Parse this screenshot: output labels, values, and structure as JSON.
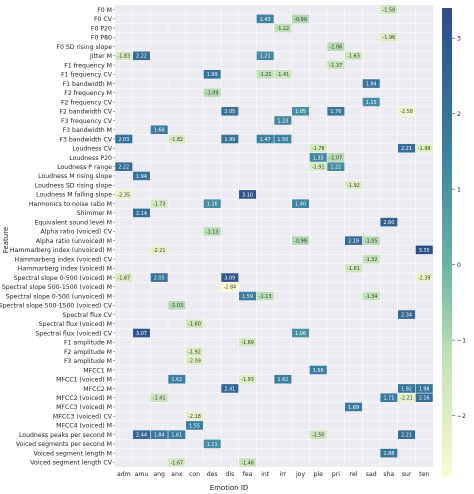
{
  "chart_data": {
    "type": "heatmap",
    "xlabel": "Emotion ID",
    "ylabel": "Feature",
    "columns": [
      "adm",
      "amu",
      "ang",
      "anx",
      "con",
      "des",
      "dis",
      "fea",
      "int",
      "irr",
      "joy",
      "ple",
      "pri",
      "rel",
      "sad",
      "sha",
      "sur",
      "ten"
    ],
    "rows": [
      "F0 M",
      "F0 CV",
      "F0 P20",
      "F0 P80",
      "F0 SD rising slope",
      "Jitter M",
      "F1 frequency M",
      "F1 frequency CV",
      "F1 bandwidth M",
      "F2 frequency M",
      "F2 frequency CV",
      "F2 bandwidth CV",
      "F3 frequency CV",
      "F3 bandwidth M",
      "F3 bandwidth CV",
      "Loudness CV",
      "Loudness P20",
      "Loudness P range",
      "Loudness M rising slope",
      "Loudness SD rising slope",
      "Loudness M falling slope",
      "Harmonics to noise ratio M",
      "Shimmer M",
      "Equivalent sound level M",
      "Alpha ratio (voiced) CV",
      "Alpha ratio (unvoiced) M",
      "Hammarberg index (unvoiced) M",
      "Hammarberg index (voiced) CV",
      "Hammarberg index (voiced) M",
      "Spectral slope 0-500 (voiced) M",
      "Spectral slope 500-1500 (voiced) M",
      "Spectral slope 0-500 (unvoiced) M",
      "Spectral slope 500-1500 (voiced) CV",
      "Spectral flux CV",
      "Spectral flux (voiced) M",
      "Spectral flux (voiced) CV",
      "F1 amplitude M",
      "F2 amplitude M",
      "F3 amplitude M",
      "MFCC1 M",
      "MFCC1 (voiced) M",
      "MFCC2 M",
      "MFCC2 (voiced) M",
      "MFCC3 (voiced) M",
      "MFCC3 (voiced) CV",
      "MFCC4 (voiced) M",
      "Loudness peaks per second M",
      "Voiced segments per second M",
      "Voiced segment length M",
      "Voiced segment length CV"
    ],
    "cells": [
      {
        "row": 0,
        "col": 15,
        "value": -1.58
      },
      {
        "row": 1,
        "col": 8,
        "value": 1.43
      },
      {
        "row": 1,
        "col": 10,
        "value": -0.99
      },
      {
        "row": 2,
        "col": 9,
        "value": -1.22
      },
      {
        "row": 3,
        "col": 15,
        "value": -1.96
      },
      {
        "row": 4,
        "col": 12,
        "value": -1.06
      },
      {
        "row": 5,
        "col": 0,
        "value": -1.83
      },
      {
        "row": 5,
        "col": 1,
        "value": 2.22
      },
      {
        "row": 5,
        "col": 8,
        "value": 1.21
      },
      {
        "row": 5,
        "col": 13,
        "value": -1.63
      },
      {
        "row": 6,
        "col": 12,
        "value": -1.37
      },
      {
        "row": 7,
        "col": 5,
        "value": 1.99
      },
      {
        "row": 7,
        "col": 8,
        "value": -1.21
      },
      {
        "row": 7,
        "col": 9,
        "value": -1.41
      },
      {
        "row": 8,
        "col": 14,
        "value": 1.94
      },
      {
        "row": 9,
        "col": 5,
        "value": -1.09
      },
      {
        "row": 10,
        "col": 14,
        "value": 1.15
      },
      {
        "row": 11,
        "col": 6,
        "value": 2.05
      },
      {
        "row": 11,
        "col": 10,
        "value": 1.05
      },
      {
        "row": 11,
        "col": 12,
        "value": 1.76
      },
      {
        "row": 11,
        "col": 16,
        "value": -2.58
      },
      {
        "row": 12,
        "col": 9,
        "value": 1.23
      },
      {
        "row": 13,
        "col": 2,
        "value": 1.68
      },
      {
        "row": 14,
        "col": 0,
        "value": 2.03
      },
      {
        "row": 14,
        "col": 3,
        "value": -1.82
      },
      {
        "row": 14,
        "col": 6,
        "value": 1.99
      },
      {
        "row": 14,
        "col": 8,
        "value": 1.47
      },
      {
        "row": 14,
        "col": 9,
        "value": 1.5
      },
      {
        "row": 15,
        "col": 11,
        "value": -1.78
      },
      {
        "row": 15,
        "col": 16,
        "value": 2.21
      },
      {
        "row": 15,
        "col": 17,
        "value": -1.99
      },
      {
        "row": 16,
        "col": 11,
        "value": 1.35
      },
      {
        "row": 16,
        "col": 12,
        "value": -1.07
      },
      {
        "row": 17,
        "col": 0,
        "value": 2.22
      },
      {
        "row": 17,
        "col": 11,
        "value": -1.91
      },
      {
        "row": 17,
        "col": 12,
        "value": 1.21
      },
      {
        "row": 18,
        "col": 1,
        "value": 1.94
      },
      {
        "row": 19,
        "col": 13,
        "value": -1.92
      },
      {
        "row": 20,
        "col": 0,
        "value": -2.35
      },
      {
        "row": 20,
        "col": 7,
        "value": 3.1
      },
      {
        "row": 21,
        "col": 2,
        "value": -1.73
      },
      {
        "row": 21,
        "col": 5,
        "value": 1.16
      },
      {
        "row": 21,
        "col": 10,
        "value": 1.4
      },
      {
        "row": 22,
        "col": 1,
        "value": 2.14
      },
      {
        "row": 23,
        "col": 15,
        "value": 2.6
      },
      {
        "row": 24,
        "col": 5,
        "value": -1.13
      },
      {
        "row": 25,
        "col": 10,
        "value": -0.99
      },
      {
        "row": 25,
        "col": 13,
        "value": 2.19
      },
      {
        "row": 25,
        "col": 14,
        "value": -1.05
      },
      {
        "row": 26,
        "col": 2,
        "value": -2.21
      },
      {
        "row": 26,
        "col": 17,
        "value": 3.35
      },
      {
        "row": 27,
        "col": 14,
        "value": -1.32
      },
      {
        "row": 28,
        "col": 13,
        "value": -1.61
      },
      {
        "row": 29,
        "col": 0,
        "value": -1.87
      },
      {
        "row": 29,
        "col": 2,
        "value": 2.05
      },
      {
        "row": 29,
        "col": 6,
        "value": 3.09
      },
      {
        "row": 29,
        "col": 17,
        "value": -2.39
      },
      {
        "row": 30,
        "col": 6,
        "value": -2.84
      },
      {
        "row": 31,
        "col": 7,
        "value": 1.59
      },
      {
        "row": 31,
        "col": 8,
        "value": -1.13
      },
      {
        "row": 31,
        "col": 14,
        "value": -1.34
      },
      {
        "row": 32,
        "col": 3,
        "value": -1.03
      },
      {
        "row": 33,
        "col": 16,
        "value": 2.34
      },
      {
        "row": 34,
        "col": 4,
        "value": -1.6
      },
      {
        "row": 35,
        "col": 1,
        "value": 3.07
      },
      {
        "row": 35,
        "col": 10,
        "value": 1.06
      },
      {
        "row": 36,
        "col": 7,
        "value": -1.69
      },
      {
        "row": 37,
        "col": 4,
        "value": -1.92
      },
      {
        "row": 38,
        "col": 4,
        "value": -2.09
      },
      {
        "row": 39,
        "col": 11,
        "value": 1.56
      },
      {
        "row": 40,
        "col": 3,
        "value": 1.62
      },
      {
        "row": 40,
        "col": 7,
        "value": -1.93
      },
      {
        "row": 40,
        "col": 9,
        "value": 1.62
      },
      {
        "row": 41,
        "col": 6,
        "value": 2.41
      },
      {
        "row": 41,
        "col": 16,
        "value": 1.92
      },
      {
        "row": 41,
        "col": 17,
        "value": 1.98
      },
      {
        "row": 42,
        "col": 2,
        "value": -1.41
      },
      {
        "row": 42,
        "col": 15,
        "value": 1.71
      },
      {
        "row": 42,
        "col": 16,
        "value": -2.21
      },
      {
        "row": 42,
        "col": 17,
        "value": 2.16
      },
      {
        "row": 43,
        "col": 13,
        "value": 1.69
      },
      {
        "row": 44,
        "col": 4,
        "value": -2.18
      },
      {
        "row": 45,
        "col": 4,
        "value": 1.55
      },
      {
        "row": 46,
        "col": 1,
        "value": 2.44
      },
      {
        "row": 46,
        "col": 2,
        "value": 1.84
      },
      {
        "row": 46,
        "col": 3,
        "value": 1.61
      },
      {
        "row": 46,
        "col": 11,
        "value": -1.5
      },
      {
        "row": 46,
        "col": 16,
        "value": 2.21
      },
      {
        "row": 47,
        "col": 5,
        "value": 1.11
      },
      {
        "row": 48,
        "col": 15,
        "value": 1.88
      },
      {
        "row": 49,
        "col": 3,
        "value": -1.67
      },
      {
        "row": 49,
        "col": 7,
        "value": -1.46
      }
    ],
    "colorbar": {
      "ticks": [
        3,
        2,
        1,
        0,
        -1,
        -2
      ],
      "min": -2.8,
      "max": 3.4
    },
    "colors": {
      "low": "#fbfbd0",
      "mid": "#6ab4a4",
      "high": "#2c4d87",
      "empty": "#ececf2"
    }
  }
}
